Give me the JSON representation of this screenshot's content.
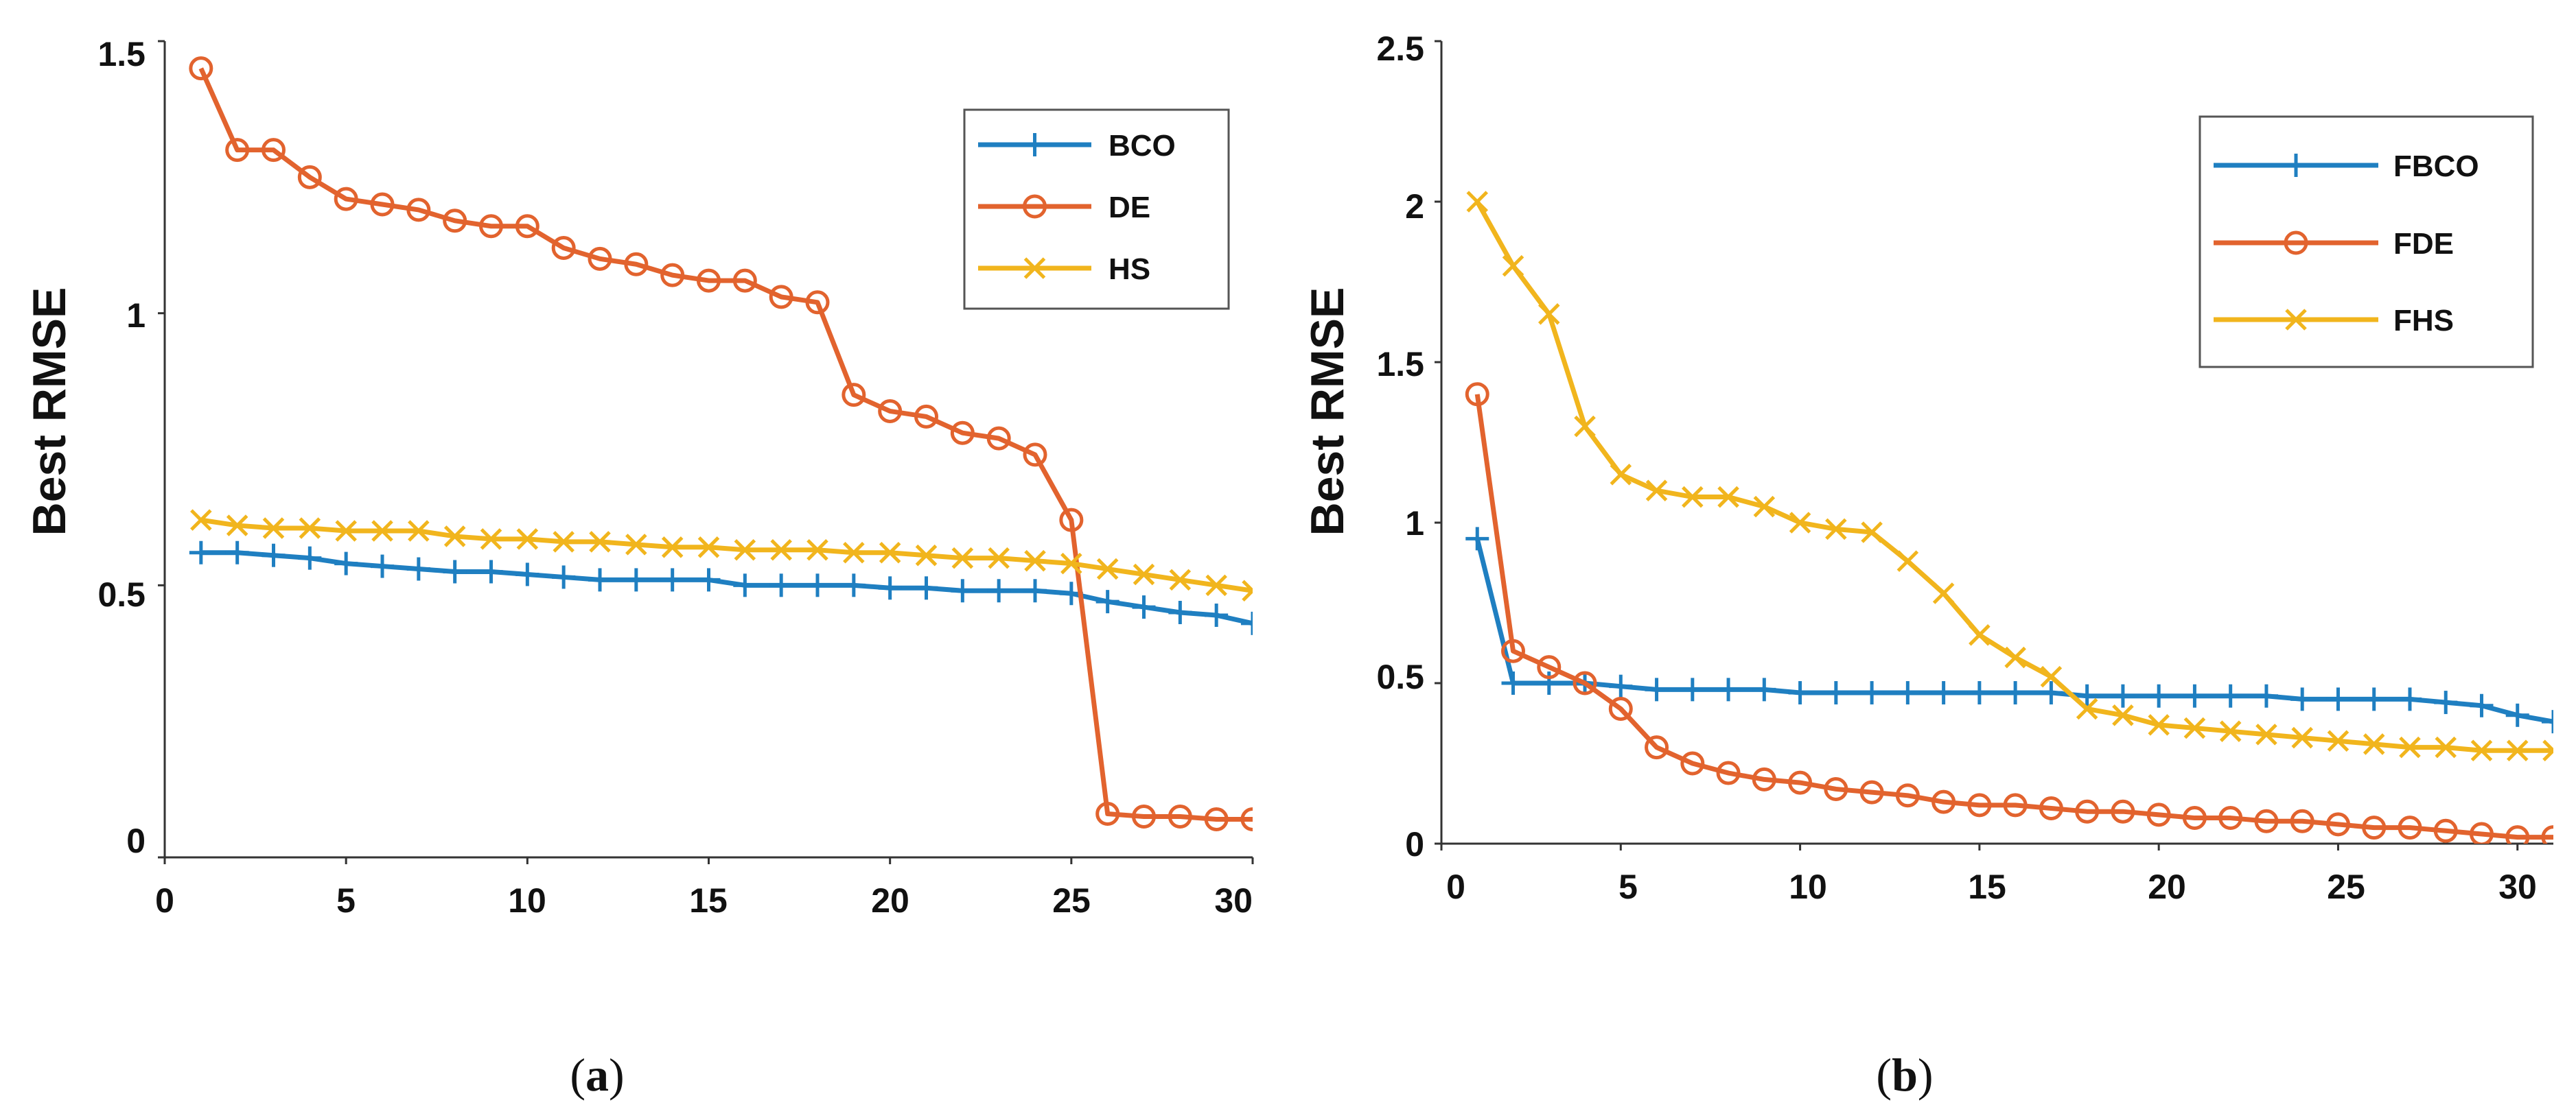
{
  "chart_data": [
    {
      "type": "line",
      "caption_letter": "a",
      "xlabel": "",
      "ylabel": "Best RMSE",
      "xlim": [
        0,
        30
      ],
      "ylim": [
        0,
        1.5
      ],
      "xticks": [
        "0",
        "5",
        "10",
        "15",
        "20",
        "25",
        "30"
      ],
      "yticks": [
        "0",
        "0.5",
        "1",
        "1.5"
      ],
      "legend_position": "top-right",
      "x": [
        1,
        2,
        3,
        4,
        5,
        6,
        7,
        8,
        9,
        10,
        11,
        12,
        13,
        14,
        15,
        16,
        17,
        18,
        19,
        20,
        21,
        22,
        23,
        24,
        25,
        26,
        27,
        28,
        29,
        30
      ],
      "series": [
        {
          "name": "BCO",
          "color": "#1f7fc1",
          "marker": "plus",
          "values": [
            0.56,
            0.56,
            0.555,
            0.55,
            0.54,
            0.535,
            0.53,
            0.525,
            0.525,
            0.52,
            0.515,
            0.51,
            0.51,
            0.51,
            0.51,
            0.5,
            0.5,
            0.5,
            0.5,
            0.495,
            0.495,
            0.49,
            0.49,
            0.49,
            0.485,
            0.47,
            0.46,
            0.45,
            0.445,
            0.43
          ]
        },
        {
          "name": "DE",
          "color": "#e2632e",
          "marker": "circle",
          "values": [
            1.45,
            1.3,
            1.3,
            1.25,
            1.21,
            1.2,
            1.19,
            1.17,
            1.16,
            1.16,
            1.12,
            1.1,
            1.09,
            1.07,
            1.06,
            1.06,
            1.03,
            1.02,
            0.85,
            0.82,
            0.81,
            0.78,
            0.77,
            0.74,
            0.62,
            0.08,
            0.075,
            0.075,
            0.07,
            0.07
          ]
        },
        {
          "name": "HS",
          "color": "#f1b51d",
          "marker": "x",
          "values": [
            0.62,
            0.61,
            0.605,
            0.605,
            0.6,
            0.6,
            0.6,
            0.59,
            0.585,
            0.585,
            0.58,
            0.58,
            0.575,
            0.57,
            0.57,
            0.565,
            0.565,
            0.565,
            0.56,
            0.56,
            0.555,
            0.55,
            0.55,
            0.545,
            0.54,
            0.53,
            0.52,
            0.51,
            0.5,
            0.49
          ]
        }
      ]
    },
    {
      "type": "line",
      "caption_letter": "b",
      "xlabel": "",
      "ylabel": "Best RMSE",
      "xlim": [
        0,
        31
      ],
      "ylim": [
        0,
        2.5
      ],
      "xticks": [
        "0",
        "5",
        "10",
        "15",
        "20",
        "25",
        "30"
      ],
      "yticks": [
        "0",
        "0.5",
        "1",
        "1.5",
        "2",
        "2.5"
      ],
      "legend_position": "top-right",
      "x": [
        1,
        2,
        3,
        4,
        5,
        6,
        7,
        8,
        9,
        10,
        11,
        12,
        13,
        14,
        15,
        16,
        17,
        18,
        19,
        20,
        21,
        22,
        23,
        24,
        25,
        26,
        27,
        28,
        29,
        30,
        31
      ],
      "series": [
        {
          "name": "FBCO",
          "color": "#1f7fc1",
          "marker": "plus",
          "values": [
            0.95,
            0.5,
            0.5,
            0.5,
            0.49,
            0.48,
            0.48,
            0.48,
            0.48,
            0.47,
            0.47,
            0.47,
            0.47,
            0.47,
            0.47,
            0.47,
            0.47,
            0.46,
            0.46,
            0.46,
            0.46,
            0.46,
            0.46,
            0.45,
            0.45,
            0.45,
            0.45,
            0.44,
            0.43,
            0.4,
            0.38
          ]
        },
        {
          "name": "FDE",
          "color": "#e2632e",
          "marker": "circle",
          "values": [
            1.4,
            0.6,
            0.55,
            0.5,
            0.42,
            0.3,
            0.25,
            0.22,
            0.2,
            0.19,
            0.17,
            0.16,
            0.15,
            0.13,
            0.12,
            0.12,
            0.11,
            0.1,
            0.1,
            0.09,
            0.08,
            0.08,
            0.07,
            0.07,
            0.06,
            0.05,
            0.05,
            0.04,
            0.03,
            0.02,
            0.02
          ]
        },
        {
          "name": "FHS",
          "color": "#f1b51d",
          "marker": "x",
          "values": [
            2.0,
            1.8,
            1.65,
            1.3,
            1.15,
            1.1,
            1.08,
            1.08,
            1.05,
            1.0,
            0.98,
            0.97,
            0.88,
            0.78,
            0.65,
            0.58,
            0.52,
            0.42,
            0.4,
            0.37,
            0.36,
            0.35,
            0.34,
            0.33,
            0.32,
            0.31,
            0.3,
            0.3,
            0.29,
            0.29,
            0.29
          ]
        }
      ]
    }
  ]
}
